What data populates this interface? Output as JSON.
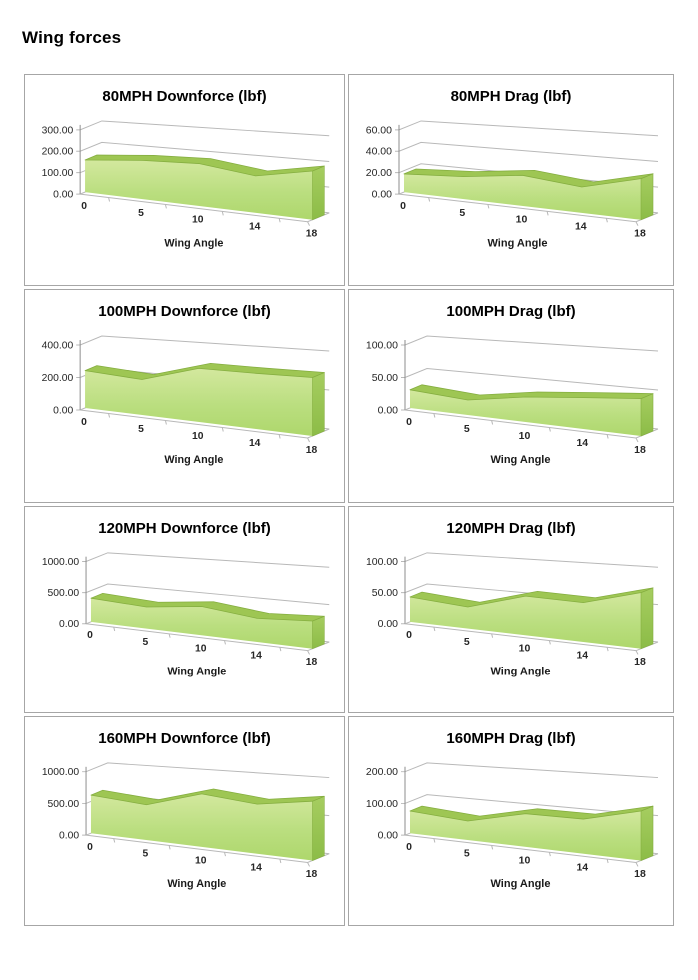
{
  "page": {
    "title": "Wing forces"
  },
  "colors": {
    "panel_border": "#a6a6a6",
    "gridline": "#b8b8b8",
    "axis_line": "#8c8c8c",
    "tick_label": "#262626",
    "area_front_top": "#d3e89e",
    "area_front_mid": "#bade7f",
    "area_front_bottom": "#aed76c",
    "area_ridge": "#9ec653",
    "area_ridge_stroke": "#85ae40",
    "area_side_top": "#a6cd60",
    "area_side_bottom": "#8cbc47"
  },
  "chart_data": [
    {
      "type": "area",
      "title": "80MPH Downforce (lbf)",
      "xlabel": "Wing Angle",
      "categories": [
        "0",
        "5",
        "10",
        "14",
        "18"
      ],
      "values": [
        150,
        172,
        180,
        150,
        190
      ],
      "y_ticks": [
        0,
        100,
        200,
        300
      ],
      "y_tick_labels": [
        "0.00",
        "100.00",
        "200.00",
        "300.00"
      ],
      "ylim": [
        0,
        300
      ],
      "grid": true,
      "legend": "none"
    },
    {
      "type": "area",
      "title": "80MPH Drag (lbf)",
      "xlabel": "Wing Angle",
      "categories": [
        "0",
        "5",
        "10",
        "14",
        "18"
      ],
      "values": [
        17,
        20,
        26,
        21,
        32
      ],
      "y_ticks": [
        0,
        20,
        40,
        60
      ],
      "y_tick_labels": [
        "0.00",
        "20.00",
        "40.00",
        "60.00"
      ],
      "ylim": [
        0,
        60
      ],
      "grid": true,
      "legend": "none"
    },
    {
      "type": "area",
      "title": "100MPH Downforce (lbf)",
      "xlabel": "Wing Angle",
      "categories": [
        "0",
        "5",
        "10",
        "14",
        "18"
      ],
      "values": [
        230,
        208,
        300,
        298,
        300
      ],
      "y_ticks": [
        0,
        200,
        400
      ],
      "y_tick_labels": [
        "0.00",
        "200.00",
        "400.00"
      ],
      "ylim": [
        0,
        400
      ],
      "grid": true,
      "legend": "none"
    },
    {
      "type": "area",
      "title": "100MPH Drag (lbf)",
      "xlabel": "Wing Angle",
      "categories": [
        "0",
        "5",
        "10",
        "14",
        "18"
      ],
      "values": [
        28,
        22,
        35,
        42,
        48
      ],
      "y_ticks": [
        0,
        50,
        100
      ],
      "y_tick_labels": [
        "0.00",
        "50.00",
        "100.00"
      ],
      "ylim": [
        0,
        100
      ],
      "grid": true,
      "legend": "none"
    },
    {
      "type": "area",
      "title": "120MPH Downforce (lbf)",
      "xlabel": "Wing Angle",
      "categories": [
        "0",
        "5",
        "10",
        "14",
        "18"
      ],
      "values": [
        380,
        330,
        420,
        330,
        370
      ],
      "y_ticks": [
        0,
        500,
        1000
      ],
      "y_tick_labels": [
        "0.00",
        "500.00",
        "1000.00"
      ],
      "ylim": [
        0,
        1000
      ],
      "grid": true,
      "legend": "none"
    },
    {
      "type": "area",
      "title": "120MPH Drag (lbf)",
      "xlabel": "Wing Angle",
      "categories": [
        "0",
        "5",
        "10",
        "14",
        "18"
      ],
      "values": [
        40,
        33,
        57,
        55,
        75
      ],
      "y_ticks": [
        0,
        50,
        100
      ],
      "y_tick_labels": [
        "0.00",
        "50.00",
        "100.00"
      ],
      "ylim": [
        0,
        100
      ],
      "grid": true,
      "legend": "none"
    },
    {
      "type": "area",
      "title": "160MPH Downforce (lbf)",
      "xlabel": "Wing Angle",
      "categories": [
        "0",
        "5",
        "10",
        "14",
        "18"
      ],
      "values": [
        600,
        530,
        760,
        680,
        780
      ],
      "y_ticks": [
        0,
        500,
        1000
      ],
      "y_tick_labels": [
        "0.00",
        "500.00",
        "1000.00"
      ],
      "ylim": [
        0,
        1000
      ],
      "grid": true,
      "legend": "none"
    },
    {
      "type": "area",
      "title": "160MPH Drag (lbf)",
      "xlabel": "Wing Angle",
      "categories": [
        "0",
        "5",
        "10",
        "14",
        "18"
      ],
      "values": [
        70,
        57,
        95,
        95,
        130
      ],
      "y_ticks": [
        0,
        100,
        200
      ],
      "y_tick_labels": [
        "0.00",
        "100.00",
        "200.00"
      ],
      "ylim": [
        0,
        200
      ],
      "grid": true,
      "legend": "none"
    }
  ]
}
